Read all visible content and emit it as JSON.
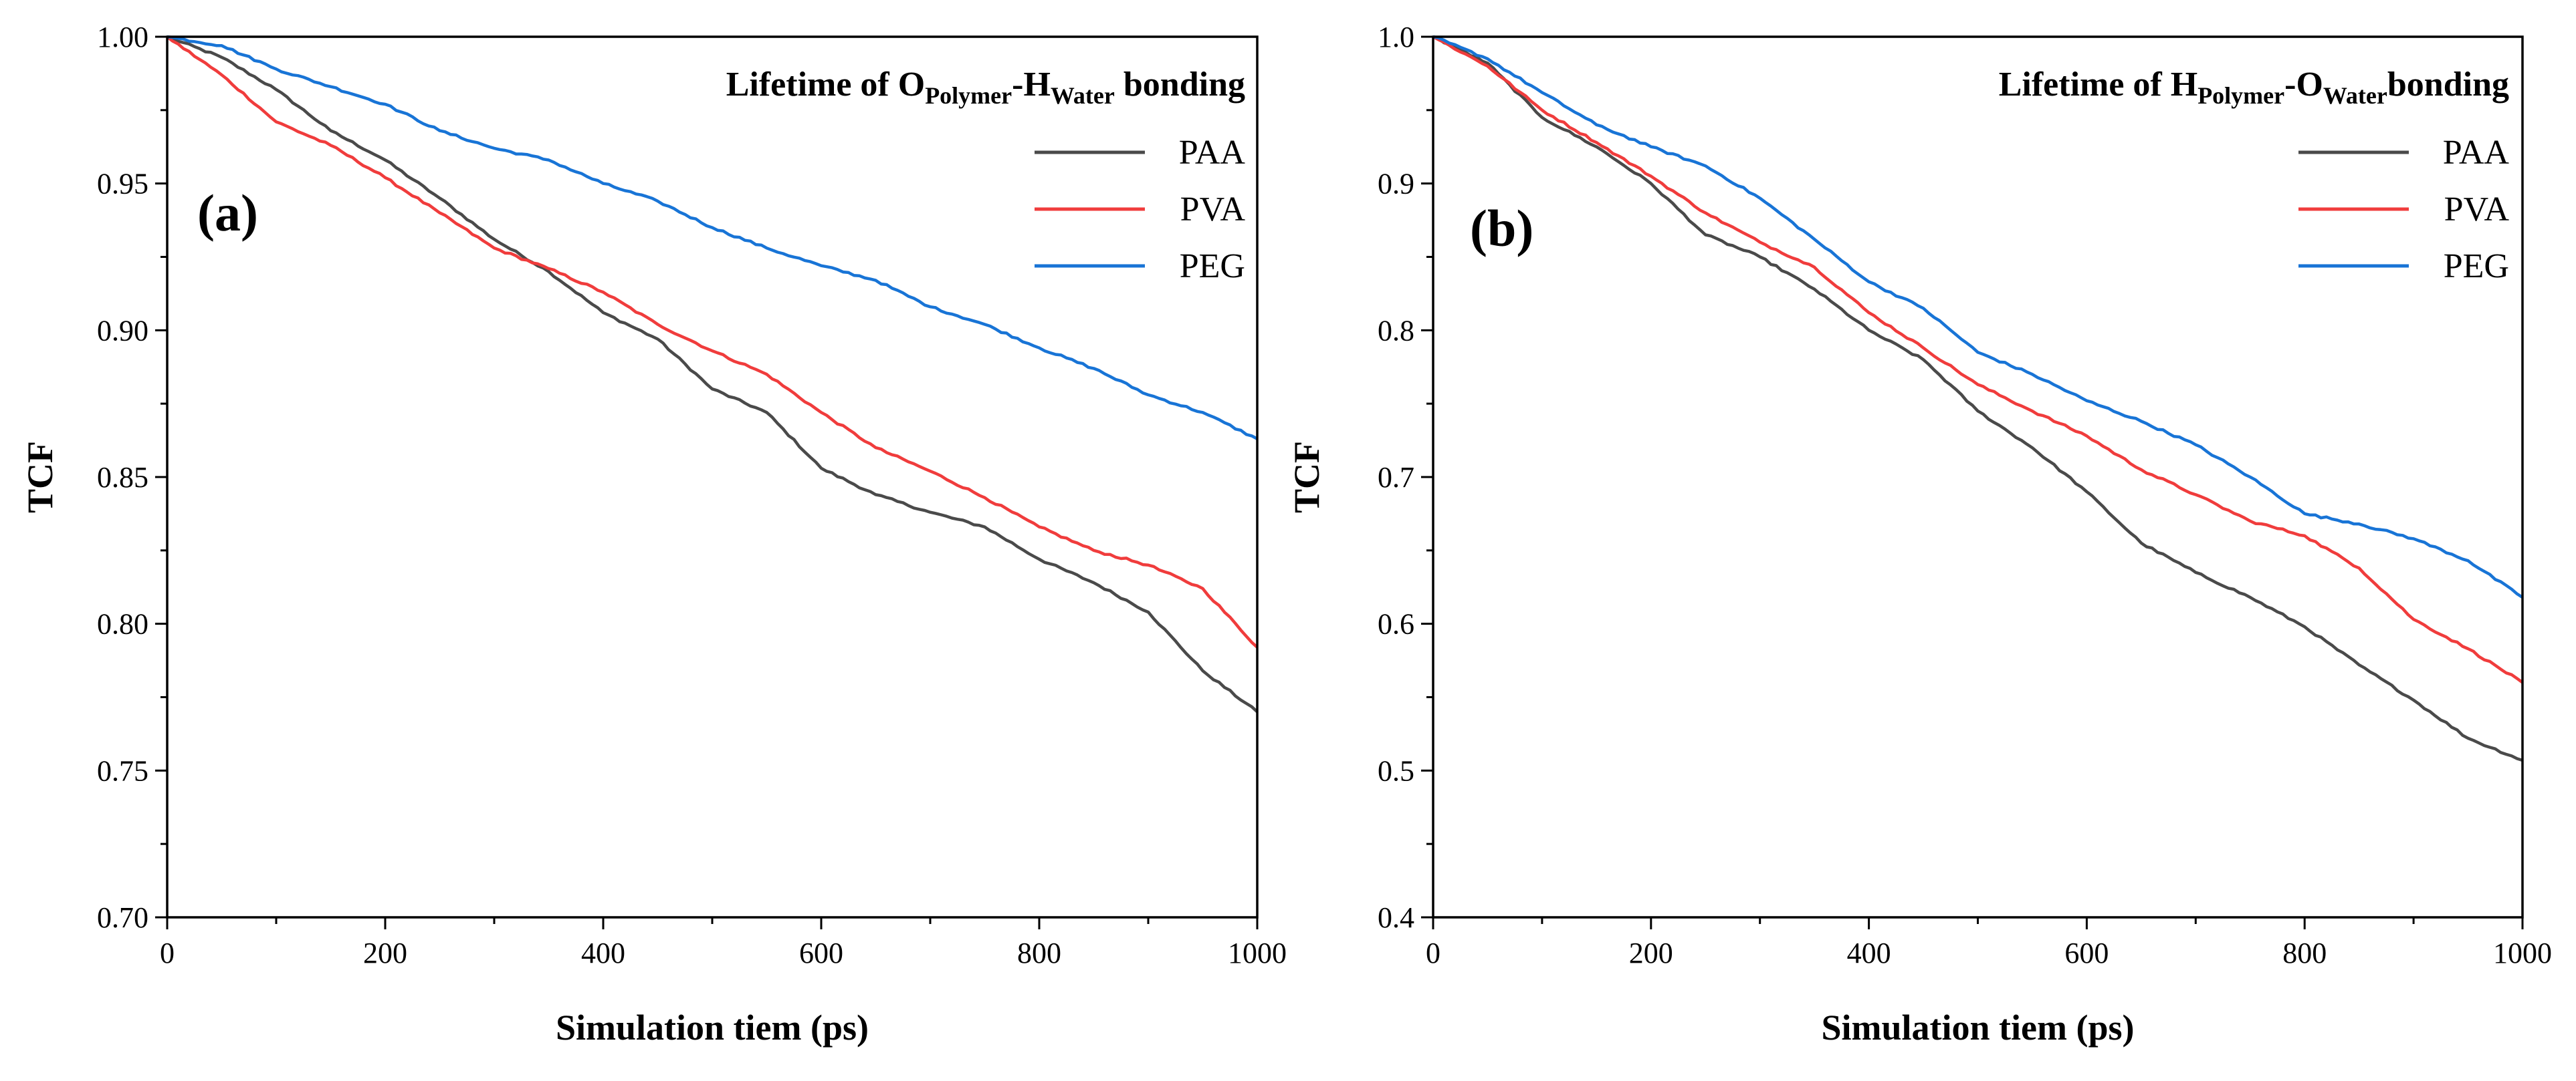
{
  "chart_data": [
    {
      "type": "line",
      "panel_label": "(a)",
      "title_parts": {
        "prefix": "Lifetime of O",
        "sub1": "Polymer",
        "mid": "-H",
        "sub2": "Water",
        "suffix": " bonding"
      },
      "xlabel": "Simulation tiem (ps)",
      "ylabel": "TCF",
      "xlim": [
        0,
        1000
      ],
      "ylim": [
        0.7,
        1.0
      ],
      "xticks": [
        0,
        200,
        400,
        600,
        800,
        1000
      ],
      "yticks": [
        0.7,
        0.75,
        0.8,
        0.85,
        0.9,
        0.95,
        1.0
      ],
      "ytick_labels": [
        "0.70",
        "0.75",
        "0.80",
        "0.85",
        "0.90",
        "0.95",
        "1.00"
      ],
      "legend_position": "top-right",
      "x": [
        0,
        50,
        100,
        150,
        200,
        250,
        300,
        350,
        400,
        450,
        500,
        550,
        600,
        650,
        700,
        750,
        800,
        850,
        900,
        950,
        1000
      ],
      "series": [
        {
          "name": "PAA",
          "color": "#4a4a4a",
          "values": [
            1.0,
            0.993,
            0.982,
            0.968,
            0.958,
            0.945,
            0.931,
            0.92,
            0.906,
            0.897,
            0.88,
            0.872,
            0.853,
            0.844,
            0.838,
            0.833,
            0.822,
            0.814,
            0.804,
            0.784,
            0.77
          ]
        },
        {
          "name": "PVA",
          "color": "#f03c3c",
          "values": [
            1.0,
            0.987,
            0.971,
            0.963,
            0.952,
            0.94,
            0.928,
            0.921,
            0.913,
            0.902,
            0.893,
            0.885,
            0.872,
            0.86,
            0.852,
            0.843,
            0.833,
            0.825,
            0.82,
            0.812,
            0.792
          ]
        },
        {
          "name": "PEG",
          "color": "#1874d6",
          "values": [
            1.0,
            0.997,
            0.989,
            0.983,
            0.977,
            0.968,
            0.962,
            0.958,
            0.95,
            0.944,
            0.935,
            0.928,
            0.922,
            0.917,
            0.908,
            0.902,
            0.894,
            0.887,
            0.878,
            0.872,
            0.863
          ]
        }
      ]
    },
    {
      "type": "line",
      "panel_label": "(b)",
      "title_parts": {
        "prefix": "Lifetime of H",
        "sub1": "Polymer",
        "mid": "-O",
        "sub2": "Water",
        "suffix": "bonding"
      },
      "xlabel": "Simulation tiem (ps)",
      "ylabel": "TCF",
      "xlim": [
        0,
        1000
      ],
      "ylim": [
        0.4,
        1.0
      ],
      "xticks": [
        0,
        200,
        400,
        600,
        800,
        1000
      ],
      "yticks": [
        0.4,
        0.5,
        0.6,
        0.7,
        0.8,
        0.9,
        1.0
      ],
      "ytick_labels": [
        "0.4",
        "0.5",
        "0.6",
        "0.7",
        "0.8",
        "0.9",
        "1.0"
      ],
      "legend_position": "top-right",
      "x": [
        0,
        50,
        100,
        150,
        200,
        250,
        300,
        350,
        400,
        450,
        500,
        550,
        600,
        650,
        700,
        750,
        800,
        850,
        900,
        950,
        1000
      ],
      "series": [
        {
          "name": "PAA",
          "color": "#4a4a4a",
          "values": [
            1.0,
            0.982,
            0.945,
            0.925,
            0.9,
            0.865,
            0.85,
            0.828,
            0.8,
            0.78,
            0.745,
            0.72,
            0.69,
            0.655,
            0.635,
            0.618,
            0.598,
            0.572,
            0.548,
            0.522,
            0.507
          ]
        },
        {
          "name": "PVA",
          "color": "#f03c3c",
          "values": [
            1.0,
            0.98,
            0.95,
            0.928,
            0.905,
            0.88,
            0.86,
            0.843,
            0.812,
            0.788,
            0.763,
            0.745,
            0.728,
            0.705,
            0.688,
            0.67,
            0.66,
            0.638,
            0.603,
            0.583,
            0.56
          ]
        },
        {
          "name": "PEG",
          "color": "#1874d6",
          "values": [
            1.0,
            0.985,
            0.962,
            0.94,
            0.925,
            0.912,
            0.89,
            0.862,
            0.833,
            0.815,
            0.785,
            0.77,
            0.752,
            0.738,
            0.722,
            0.7,
            0.675,
            0.668,
            0.658,
            0.643,
            0.618
          ]
        }
      ]
    }
  ]
}
